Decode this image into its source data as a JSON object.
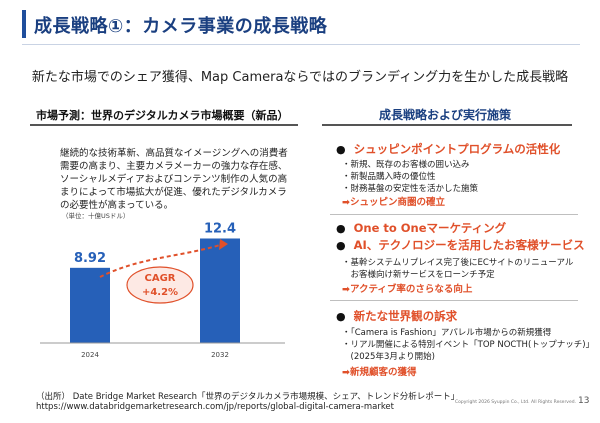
{
  "header": {
    "title": "成長戦略①：カメラ事業の成長戦略"
  },
  "subtitle": "新たな市場でのシェア獲得、Map Cameraならではのブランディング力を生かした成長戦略",
  "left": {
    "heading": "市場予測：世界のデジタルカメラ市場概要（新品）",
    "description": "継続的な技術革新、高品質なイメージングへの消費者需要の高まり、主要カメラメーカーの強力な存在感、ソーシャルメディアおよびコンテンツ制作の人気の高まりによって市場拡大が促進、優れたデジタルカメラの必要性が高まっている。",
    "unit": "（単位：十億USドル）",
    "cagr_label": "CAGR",
    "cagr_value": "+4.2%"
  },
  "chart_data": {
    "type": "bar",
    "categories": [
      "2024",
      "2032"
    ],
    "values": [
      8.92,
      12.4
    ],
    "value_labels": [
      "8.92",
      "12.4"
    ],
    "bar_color": "#2660b8",
    "ylim": [
      0,
      14
    ]
  },
  "right": {
    "heading": "成長戦略および実行施策",
    "sections": [
      {
        "bullets": [
          "シュッピンポイントプログラムの活性化"
        ],
        "items": [
          "・新規、既存のお客様の囲い込み",
          "・新製品購入時の優位性",
          "・財務基盤の安定性を活かした施策"
        ],
        "result": "➡シュッピン商圏の確立"
      },
      {
        "bullets": [
          "One to Oneマーケティング",
          "AI、テクノロジーを活用したお客様サービス"
        ],
        "items": [
          "・基幹システムリプレイス完了後にECサイトのリニューアル",
          "　お客様向け新サービスをローンチ予定"
        ],
        "result": "➡アクティブ率のさらなる向上"
      },
      {
        "bullets": [
          "新たな世界観の訴求"
        ],
        "items": [
          "・「Camera is Fashion」アパレル市場からの新規獲得",
          "・リアル開催による特別イベント「TOP NOCTH(トップナッチ)」",
          "　(2025年3月より開始)"
        ],
        "result": "➡新規顧客の獲得"
      }
    ]
  },
  "footer": {
    "source_line1": "（出所） Date Bridge Market Research「世界のデジタルカメラ市場規模、シェア、トレンド分析レポート」",
    "source_line2": "https://www.databridgemarketresearch.com/jp/reports/global-digital-camera-market",
    "copyright": "Copyright 2026 Syuppin Co., Ltd. All Rights Reserved.",
    "page": "13"
  },
  "colors": {
    "accent": "#e0502a",
    "navy": "#1a3f80",
    "bar": "#2660b8"
  }
}
